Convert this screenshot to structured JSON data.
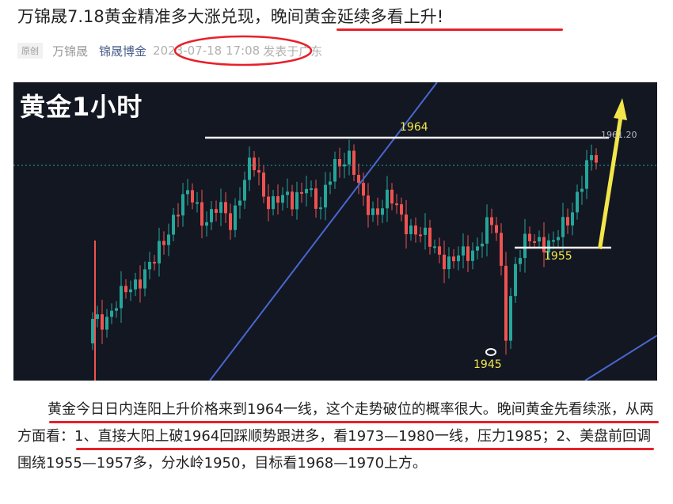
{
  "article": {
    "title": "万锦晟7.18黄金精准多大涨兑现，晚间黄金延续多看上升!",
    "tag": "原创",
    "author": "万锦晟",
    "org": "锦晟博金",
    "datetime": "2023-07-18 17:08",
    "location": "发表于广东",
    "paragraph": "黄金今日日内连阳上升价格来到1964一线，这个走势破位的概率很大。晚间黄金先看续涨，从两方面看：1、直接大阳上破1964回踩顺势跟进多，看1973—1980一线，压力1985；2、美盘前回调围绕1955—1957多，分水岭1950，目标看1968—1970上方。"
  },
  "chart_data": {
    "type": "candlestick",
    "title": "黄金1小时",
    "levels": [
      {
        "label": "1964",
        "value": 1964
      },
      {
        "label": "1955",
        "value": 1955
      },
      {
        "label": "1945",
        "value": 1945
      }
    ],
    "price_label": "1961.20",
    "colors": {
      "up": "#26a69a",
      "down": "#ef5350",
      "levels": "#ffffff",
      "annotation": "#f2e64a",
      "trendline": "#4a66d0",
      "background": "#131722"
    }
  }
}
